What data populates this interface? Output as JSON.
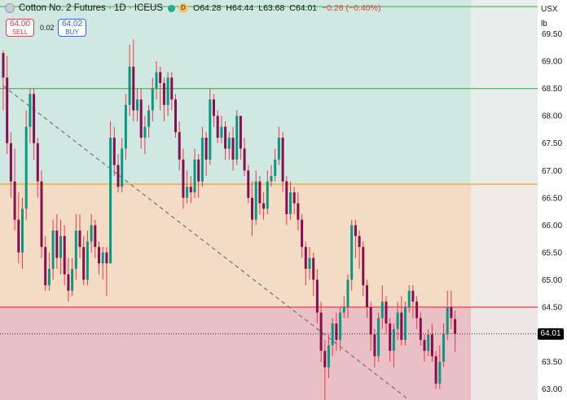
{
  "header": {
    "symbol": "Cotton No. 2 Futures · 1D · ICEUS",
    "badge": "D",
    "ohlc": [
      {
        "k": "O",
        "v": "64.28"
      },
      {
        "k": "H",
        "v": "64.44"
      },
      {
        "k": "L",
        "v": "63.68"
      },
      {
        "k": "C",
        "v": "64.01"
      }
    ],
    "change": "−0.26 (−0.40%)"
  },
  "trade": {
    "sell_price": "64.00",
    "sell_label": "SELL",
    "spread": "0.02",
    "buy_price": "64.02",
    "buy_label": "BUY"
  },
  "axis_controls": {
    "currency": "USX",
    "unit": "lb"
  },
  "colors": {
    "up": "#089981",
    "down": "#880e4f",
    "wick": "#f23645",
    "zone_top": "#cfe8e1",
    "zone_mid": "#f2dcc6",
    "zone_low": "#e8c0c6",
    "level_green": "#4caf50",
    "level_orange": "#ff9800",
    "level_red": "#f23645"
  },
  "chart_data": {
    "type": "candlestick",
    "ylim": [
      62.8,
      70.12
    ],
    "yticks": [
      "69.50",
      "69.00",
      "68.50",
      "68.00",
      "67.50",
      "67.00",
      "66.50",
      "66.00",
      "65.50",
      "65.00",
      "64.50",
      "64.00",
      "63.50",
      "63.00"
    ],
    "current_price": "64.01",
    "levels": [
      {
        "value": 70.0,
        "color": "green"
      },
      {
        "value": 68.5,
        "color": "green"
      },
      {
        "value": 66.75,
        "color": "orange"
      },
      {
        "value": 64.5,
        "color": "red"
      }
    ],
    "zones": [
      {
        "from": 68.5,
        "to": 70.12,
        "color": "zone_top"
      },
      {
        "from": 66.75,
        "to": 68.5,
        "color": "zone_top"
      },
      {
        "from": 64.5,
        "to": 66.75,
        "color": "zone_mid"
      },
      {
        "from": 62.8,
        "to": 64.5,
        "color": "zone_low"
      }
    ],
    "trendline": {
      "from": [
        0,
        68.55
      ],
      "to": [
        106,
        62.8
      ]
    },
    "candles": [
      [
        69.15,
        68.7,
        69.2,
        68.1
      ],
      [
        68.7,
        67.5,
        69.1,
        67.3
      ],
      [
        67.5,
        66.8,
        67.7,
        66.5
      ],
      [
        66.8,
        66.1,
        67.4,
        65.9
      ],
      [
        66.1,
        65.5,
        66.6,
        65.3
      ],
      [
        65.5,
        66.3,
        66.5,
        65.2
      ],
      [
        66.3,
        67.8,
        68.1,
        66.1
      ],
      [
        67.8,
        68.4,
        68.5,
        67.5
      ],
      [
        68.4,
        67.5,
        68.5,
        67.2
      ],
      [
        67.5,
        66.8,
        67.6,
        66.5
      ],
      [
        66.8,
        65.6,
        67.0,
        65.4
      ],
      [
        65.6,
        64.9,
        65.8,
        64.8
      ],
      [
        64.9,
        65.2,
        65.5,
        64.8
      ],
      [
        65.2,
        65.9,
        66.1,
        65.0
      ],
      [
        65.9,
        65.4,
        66.2,
        65.2
      ],
      [
        65.4,
        65.8,
        66.1,
        65.1
      ],
      [
        65.8,
        65.1,
        66.0,
        64.9
      ],
      [
        65.1,
        64.8,
        65.4,
        64.6
      ],
      [
        64.8,
        65.2,
        65.4,
        64.7
      ],
      [
        65.2,
        65.9,
        66.2,
        65.0
      ],
      [
        65.9,
        65.6,
        66.2,
        65.4
      ],
      [
        65.6,
        65.0,
        65.8,
        64.9
      ],
      [
        65.0,
        65.7,
        65.9,
        64.9
      ],
      [
        65.7,
        66.0,
        66.2,
        65.5
      ],
      [
        66.0,
        65.6,
        66.1,
        65.4
      ],
      [
        65.6,
        65.3,
        65.7,
        65.1
      ],
      [
        65.3,
        65.5,
        65.6,
        65.0
      ],
      [
        65.5,
        65.3,
        65.6,
        64.7
      ],
      [
        65.3,
        67.6,
        67.9,
        65.3
      ],
      [
        67.6,
        67.1,
        67.8,
        66.9
      ],
      [
        67.1,
        66.7,
        67.3,
        66.6
      ],
      [
        66.7,
        67.4,
        67.6,
        66.6
      ],
      [
        67.4,
        68.2,
        68.4,
        67.2
      ],
      [
        68.2,
        68.9,
        69.3,
        68.0
      ],
      [
        68.9,
        68.1,
        69.4,
        67.9
      ],
      [
        68.1,
        68.3,
        68.5,
        67.9
      ],
      [
        68.3,
        67.6,
        68.5,
        67.4
      ],
      [
        67.6,
        67.8,
        68.0,
        67.3
      ],
      [
        67.8,
        68.1,
        68.2,
        67.6
      ],
      [
        68.1,
        68.5,
        68.7,
        67.9
      ],
      [
        68.5,
        68.8,
        69.0,
        68.3
      ],
      [
        68.8,
        68.6,
        68.9,
        68.1
      ],
      [
        68.6,
        68.2,
        68.7,
        67.9
      ],
      [
        68.2,
        68.7,
        68.8,
        68.0
      ],
      [
        68.7,
        68.3,
        68.8,
        68.1
      ],
      [
        68.3,
        67.7,
        68.4,
        67.6
      ],
      [
        67.7,
        67.2,
        67.9,
        67.0
      ],
      [
        67.2,
        66.5,
        67.4,
        66.3
      ],
      [
        66.5,
        66.7,
        67.0,
        66.4
      ],
      [
        66.7,
        66.6,
        66.9,
        66.4
      ],
      [
        66.6,
        67.2,
        67.4,
        66.5
      ],
      [
        67.2,
        66.8,
        67.3,
        66.5
      ],
      [
        66.8,
        67.6,
        67.8,
        66.7
      ],
      [
        67.6,
        67.2,
        67.7,
        66.9
      ],
      [
        67.2,
        68.3,
        68.5,
        67.1
      ],
      [
        68.3,
        68.0,
        68.4,
        67.8
      ],
      [
        68.0,
        67.6,
        68.1,
        67.5
      ],
      [
        67.6,
        67.8,
        68.0,
        67.5
      ],
      [
        67.8,
        67.4,
        67.9,
        67.2
      ],
      [
        67.4,
        67.6,
        67.7,
        67.2
      ],
      [
        67.6,
        67.2,
        67.8,
        67.0
      ],
      [
        67.2,
        68.0,
        68.1,
        67.1
      ],
      [
        68.0,
        67.4,
        68.0,
        67.2
      ],
      [
        67.4,
        67.0,
        67.6,
        66.9
      ],
      [
        67.0,
        66.5,
        67.1,
        66.4
      ],
      [
        66.5,
        66.1,
        66.8,
        65.8
      ],
      [
        66.1,
        66.8,
        67.0,
        66.0
      ],
      [
        66.8,
        66.4,
        66.9,
        66.2
      ],
      [
        66.4,
        66.3,
        66.6,
        66.1
      ],
      [
        66.3,
        66.8,
        67.0,
        66.2
      ],
      [
        66.8,
        66.9,
        67.1,
        66.7
      ],
      [
        66.9,
        67.2,
        67.4,
        66.8
      ],
      [
        67.2,
        67.6,
        67.8,
        67.1
      ],
      [
        67.6,
        66.8,
        67.7,
        66.6
      ],
      [
        66.8,
        66.2,
        66.9,
        66.0
      ],
      [
        66.2,
        66.6,
        66.8,
        66.1
      ],
      [
        66.6,
        66.4,
        66.7,
        66.2
      ],
      [
        66.4,
        66.1,
        66.6,
        65.9
      ],
      [
        66.1,
        65.6,
        66.2,
        65.4
      ],
      [
        65.6,
        65.2,
        65.7,
        64.9
      ],
      [
        65.2,
        65.4,
        65.6,
        65.0
      ],
      [
        65.4,
        65.0,
        65.5,
        64.7
      ],
      [
        65.0,
        64.4,
        65.2,
        64.2
      ],
      [
        64.4,
        63.7,
        64.6,
        63.5
      ],
      [
        63.7,
        63.4,
        63.9,
        62.8
      ],
      [
        63.4,
        63.8,
        64.0,
        63.2
      ],
      [
        63.8,
        64.2,
        64.3,
        63.6
      ],
      [
        64.2,
        63.9,
        64.4,
        63.7
      ],
      [
        63.9,
        64.4,
        64.5,
        63.7
      ],
      [
        64.4,
        64.5,
        64.7,
        64.3
      ],
      [
        64.5,
        65.0,
        65.1,
        64.3
      ],
      [
        65.0,
        66.0,
        66.1,
        64.8
      ],
      [
        66.0,
        65.8,
        66.1,
        65.4
      ],
      [
        65.8,
        65.6,
        65.9,
        65.2
      ],
      [
        65.6,
        64.9,
        65.7,
        64.7
      ],
      [
        64.9,
        64.5,
        65.0,
        64.3
      ],
      [
        64.5,
        64.0,
        64.6,
        63.7
      ],
      [
        64.0,
        63.6,
        64.1,
        63.4
      ],
      [
        63.6,
        64.3,
        64.4,
        63.5
      ],
      [
        64.3,
        64.6,
        64.9,
        64.1
      ],
      [
        64.6,
        64.2,
        64.7,
        64.0
      ],
      [
        64.2,
        63.7,
        64.3,
        63.5
      ],
      [
        63.7,
        64.1,
        64.2,
        63.4
      ],
      [
        64.1,
        64.4,
        64.6,
        63.9
      ],
      [
        64.4,
        63.9,
        64.7,
        63.8
      ],
      [
        63.9,
        64.5,
        64.6,
        63.8
      ],
      [
        64.5,
        64.8,
        64.9,
        64.4
      ],
      [
        64.8,
        64.6,
        64.9,
        64.3
      ],
      [
        64.6,
        64.3,
        64.7,
        64.1
      ],
      [
        64.3,
        63.9,
        64.4,
        63.8
      ],
      [
        63.9,
        63.7,
        64.0,
        63.5
      ],
      [
        63.7,
        64.0,
        64.1,
        63.6
      ],
      [
        64.0,
        63.6,
        64.2,
        63.5
      ],
      [
        63.6,
        63.1,
        63.7,
        63.0
      ],
      [
        63.1,
        63.5,
        63.8,
        63.0
      ],
      [
        63.5,
        64.0,
        64.2,
        63.4
      ],
      [
        64.0,
        64.5,
        64.8,
        63.9
      ],
      [
        64.5,
        64.3,
        64.8,
        64.1
      ],
      [
        64.28,
        64.01,
        64.44,
        63.68
      ]
    ]
  }
}
